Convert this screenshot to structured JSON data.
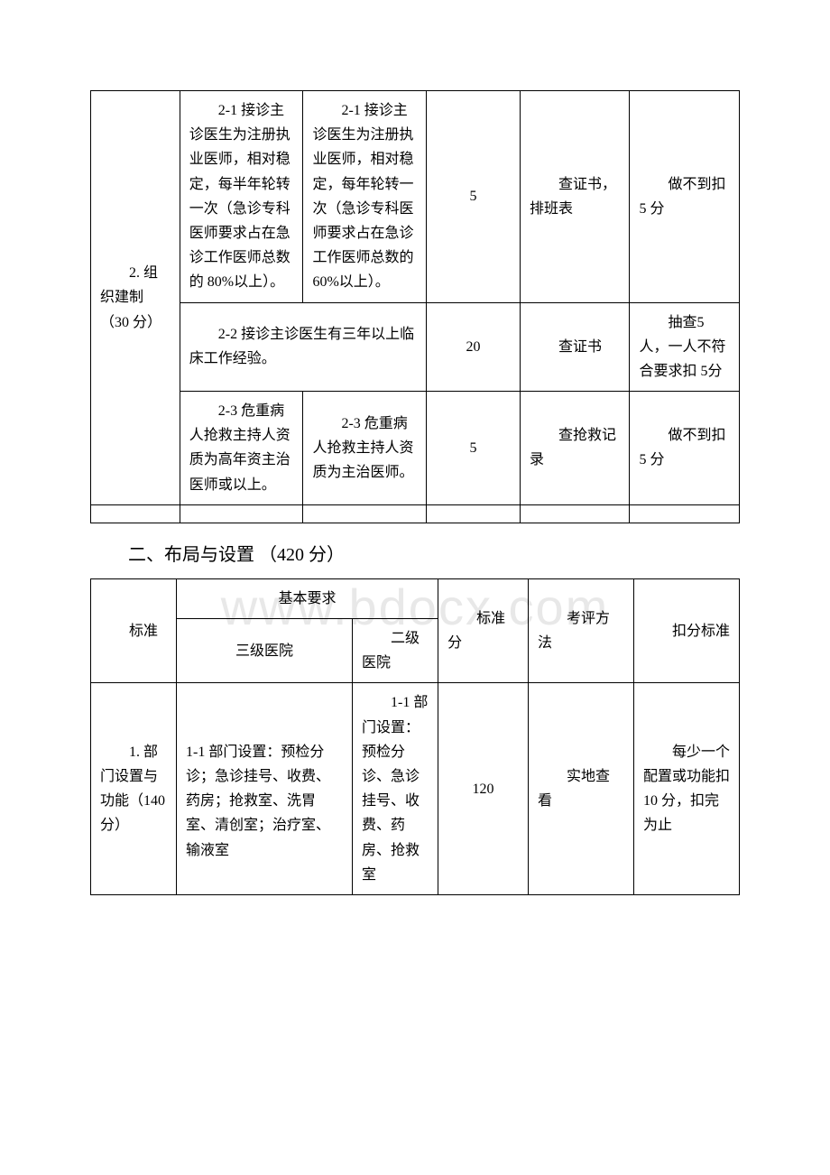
{
  "watermark": "www.bdocx.com",
  "table1": {
    "rows": [
      {
        "c0": "2. 组织建制（30 分）",
        "c1": "2-1 接诊主诊医生为注册执业医师，相对稳定，每半年轮转一次（急诊专科医师要求占在急诊工作医师总数的 80%以上）。",
        "c2": "2-1 接诊主诊医生为注册执业医师，相对稳定，每年轮转一次（急诊专科医师要求占在急诊工作医师总数的 60%以上）。",
        "c3": "5",
        "c4": "查证书，排班表",
        "c5": "做不到扣 5 分"
      },
      {
        "c1_span": "2-2 接诊主诊医生有三年以上临床工作经验。",
        "c3": "20",
        "c4": "查证书",
        "c5": "抽查5 人，一人不符合要求扣 5分"
      },
      {
        "c1": "2-3 危重病人抢救主持人资质为高年资主治医师或以上。",
        "c2": "2-3 危重病人抢救主持人资质为主治医师。",
        "c3": "5",
        "c4": "查抢救记录",
        "c5": "做不到扣 5 分"
      }
    ]
  },
  "section2": {
    "heading": "二、布局与设置 （420 分）"
  },
  "table2": {
    "header": {
      "c0": "标准",
      "c1_span": "基本要求",
      "c1": "三级医院",
      "c2": "二级医院",
      "c3": "标准分",
      "c4": "考评方法",
      "c5": "扣分标准"
    },
    "rows": [
      {
        "c0": "1. 部门设置与功能（140分）",
        "c1": "1-1 部门设置：预检分诊；急诊挂号、收费、药房；抢救室、洗胃室、清创室；治疗室、输液室",
        "c2": "1-1 部门设置：预检分诊、急诊挂号、收费、药房、抢救室",
        "c3": "120",
        "c4": "实地查看",
        "c5": "每少一个配置或功能扣10 分，扣完为止"
      }
    ]
  }
}
